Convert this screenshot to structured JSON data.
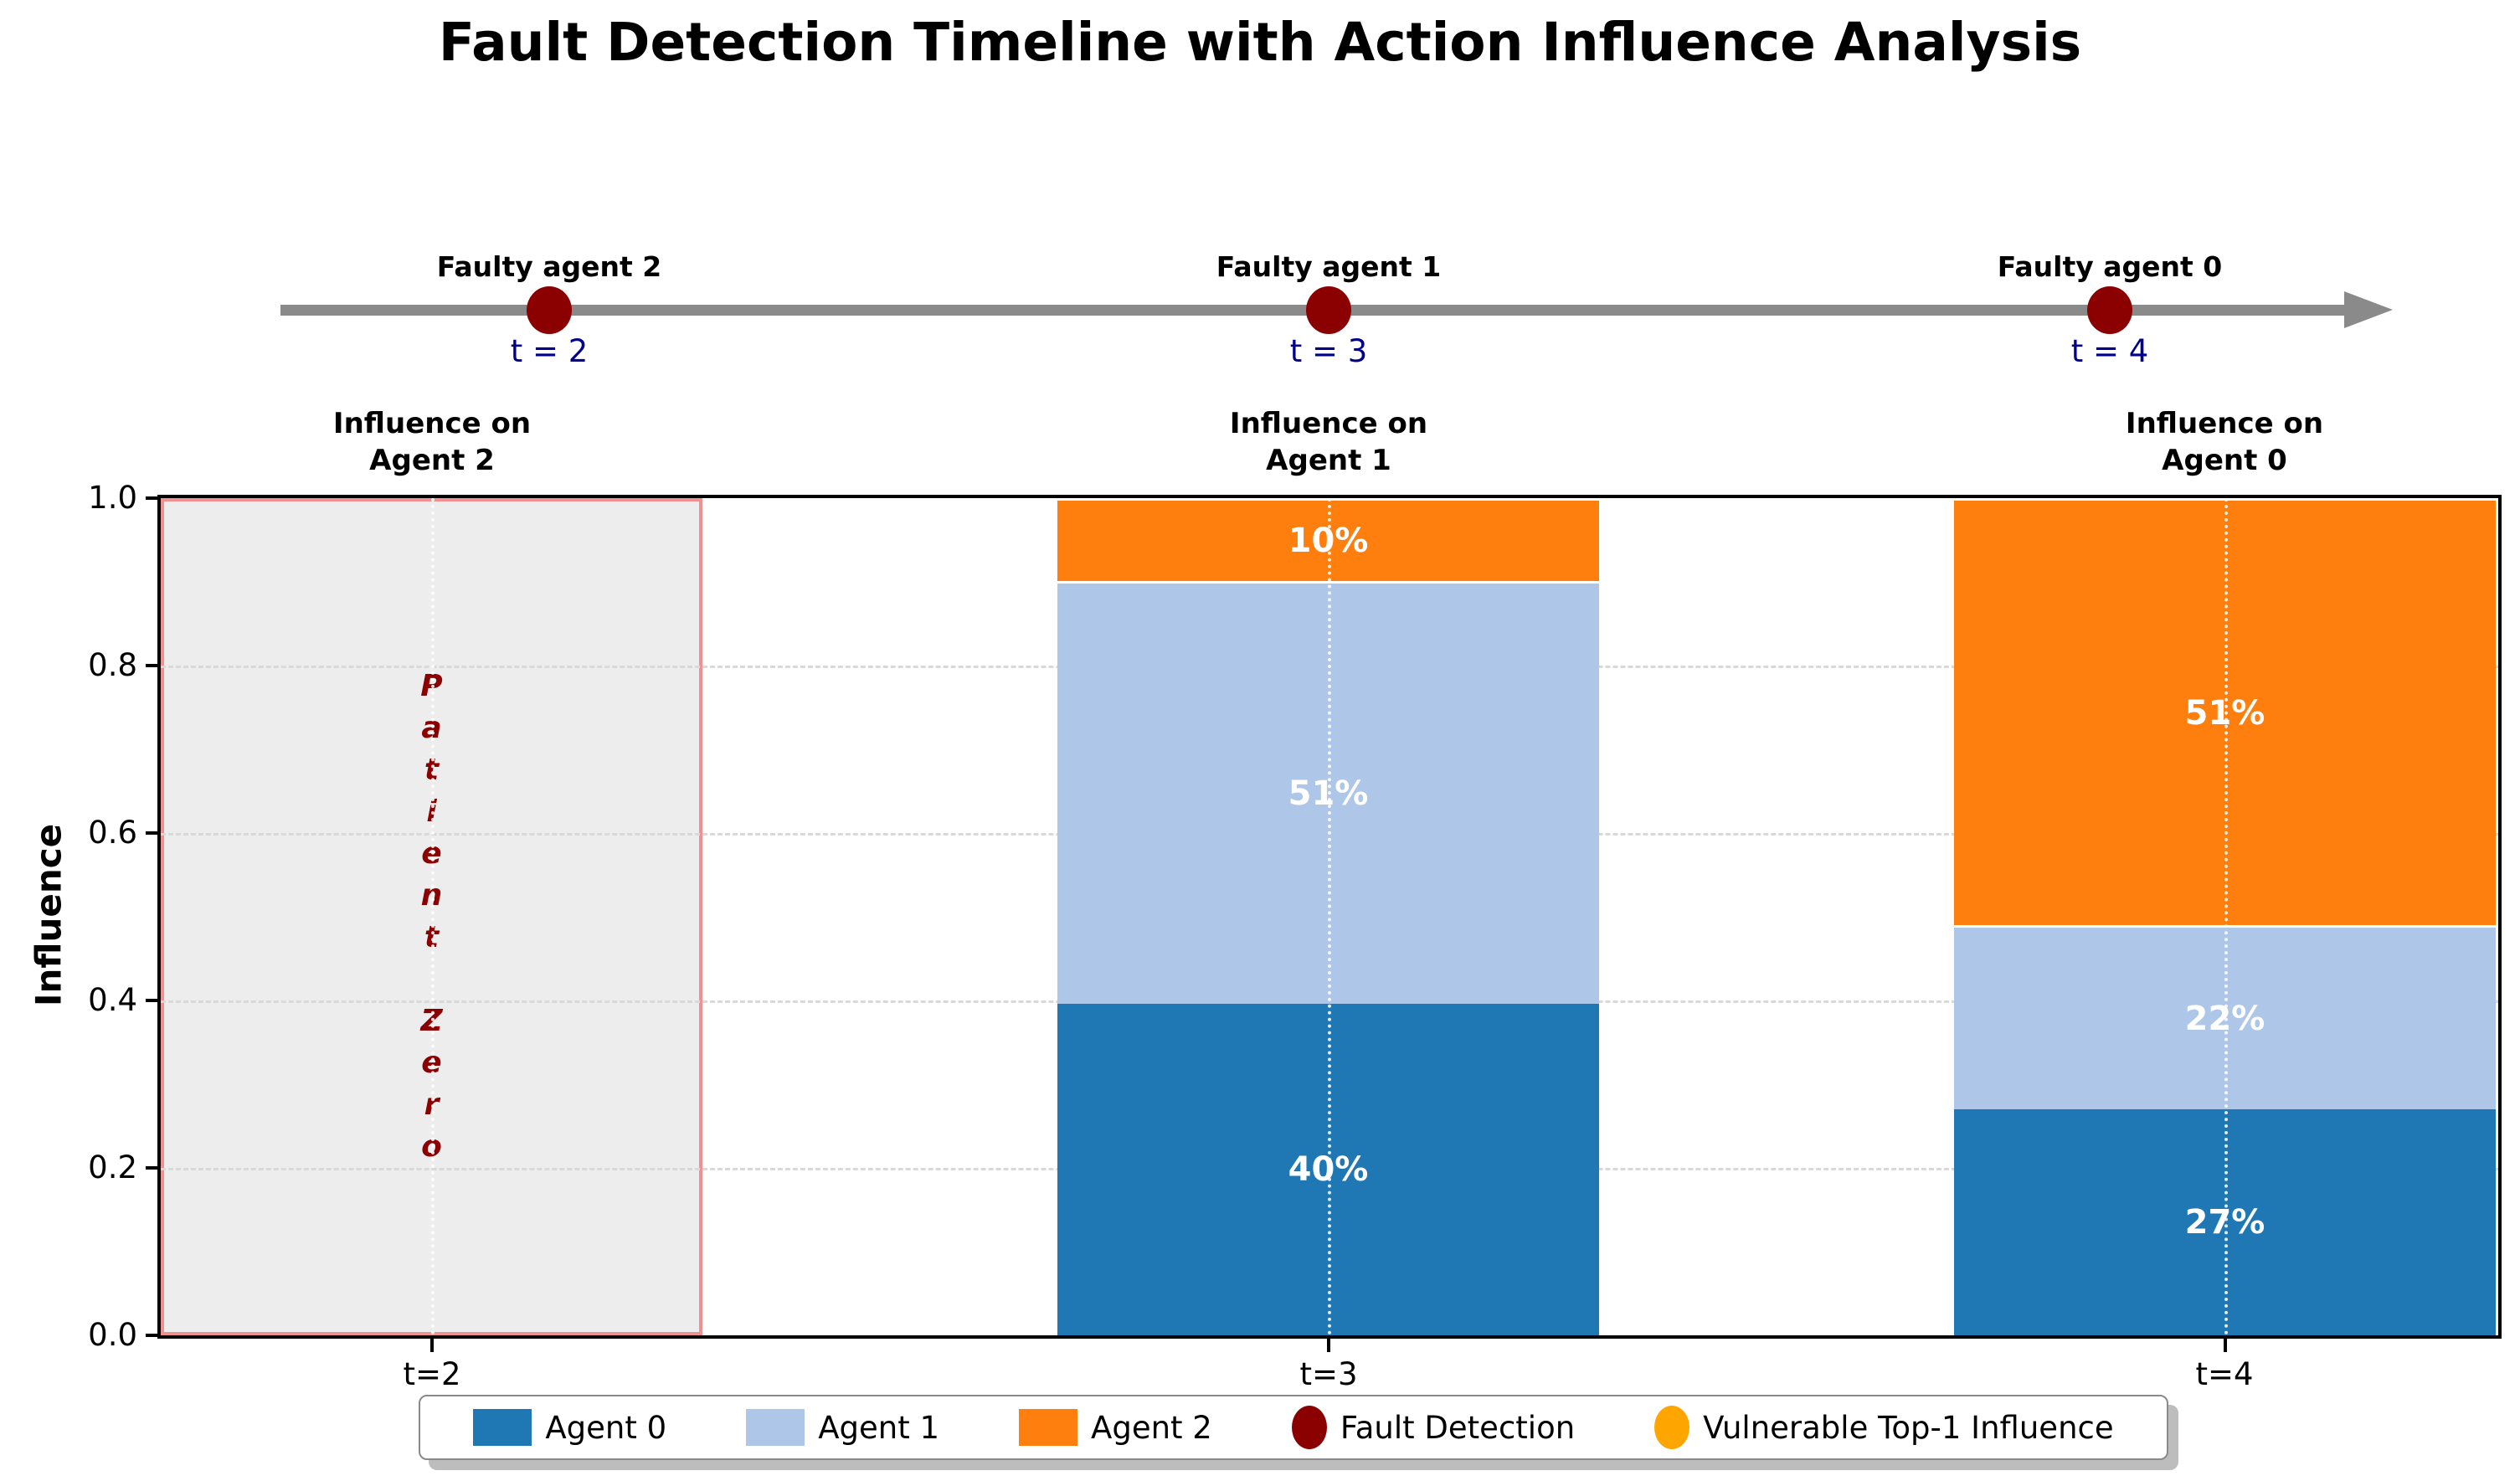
{
  "title": "Fault Detection Timeline with Action Influence Analysis",
  "timeline": {
    "line_color": "#8a8a8a",
    "marker_color": "#8b0000",
    "events": [
      {
        "label": "Faulty agent 2",
        "time": "t = 2"
      },
      {
        "label": "Faulty agent 1",
        "time": "t = 3"
      },
      {
        "label": "Faulty agent 0",
        "time": "t = 4"
      }
    ]
  },
  "column_titles": [
    {
      "line1": "Influence on",
      "line2": "Agent 2"
    },
    {
      "line1": "Influence on",
      "line2": "Agent 1"
    },
    {
      "line1": "Influence on",
      "line2": "Agent 0"
    }
  ],
  "patient_zero": {
    "text": "Patient Zero",
    "vertical_text": "P\na\nt\ni\ne\nn\nt\n\nZ\ne\nr\no",
    "text_color": "#8b0000",
    "fill_color": "#efefef",
    "edge_color": "#f08080"
  },
  "chart_data": {
    "type": "bar",
    "stacked": true,
    "categories": [
      "t=2",
      "t=3",
      "t=4"
    ],
    "series": [
      {
        "name": "Agent 0",
        "color": "#1f77b4",
        "values": [
          null,
          0.4,
          0.27
        ]
      },
      {
        "name": "Agent 1",
        "color": "#aec7e8",
        "values": [
          null,
          0.51,
          0.22
        ]
      },
      {
        "name": "Agent 2",
        "color": "#ff7f0e",
        "values": [
          null,
          0.1,
          0.51
        ]
      }
    ],
    "bar_labels": [
      [],
      [
        "40%",
        "51%",
        "10%"
      ],
      [
        "27%",
        "22%",
        "51%"
      ]
    ],
    "title": "Fault Detection Timeline with Action Influence Analysis",
    "xlabel": "",
    "ylabel": "Influence",
    "ylim": [
      0.0,
      1.0
    ],
    "yticks_top_down": [
      "1.0",
      "0.8",
      "0.6",
      "0.4",
      "0.2",
      "0.0"
    ],
    "grid": "horizontal-dashed",
    "note_t2": "Patient Zero (no influence data, shaded)",
    "legend_position": "bottom"
  },
  "legend": {
    "items": [
      {
        "label": "Agent 0",
        "marker": "square",
        "color": "#1f77b4"
      },
      {
        "label": "Agent 1",
        "marker": "square",
        "color": "#aec7e8"
      },
      {
        "label": "Agent 2",
        "marker": "square",
        "color": "#ff7f0e"
      },
      {
        "label": "Fault Detection",
        "marker": "circle",
        "color": "#8b0000"
      },
      {
        "label": "Vulnerable Top-1 Influence",
        "marker": "circle",
        "color": "#ffa500"
      }
    ]
  }
}
